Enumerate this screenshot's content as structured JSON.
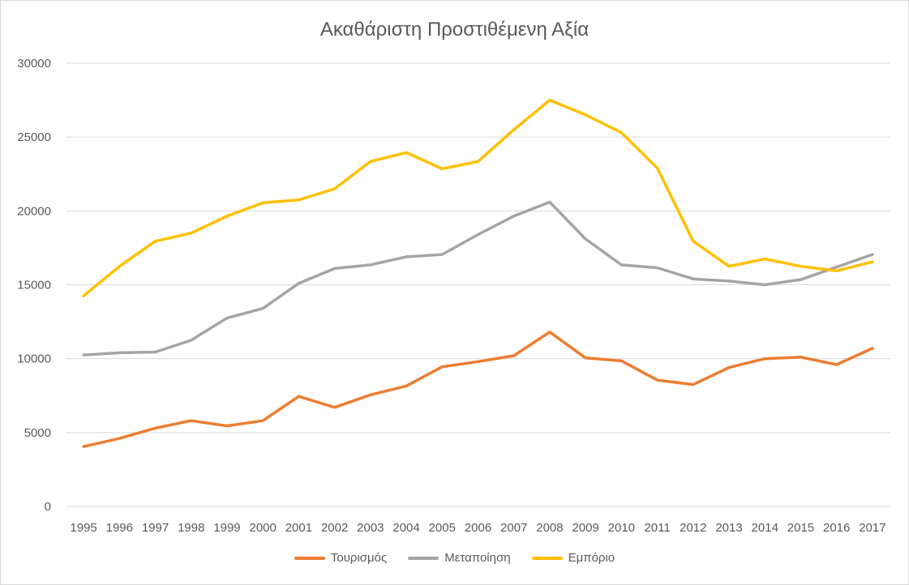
{
  "chart_data": {
    "type": "line",
    "title": "Ακαθάριστη Προστιθέμενη Αξία",
    "xlabel": "",
    "ylabel": "",
    "ylim": [
      0,
      30000
    ],
    "ytick_values": [
      0,
      5000,
      10000,
      15000,
      20000,
      25000,
      30000
    ],
    "grid": true,
    "legend_position": "bottom",
    "x": [
      "1995",
      "1996",
      "1997",
      "1998",
      "1999",
      "2000",
      "2001",
      "2002",
      "2003",
      "2004",
      "2005",
      "2006",
      "2007",
      "2008",
      "2009",
      "2010",
      "2011",
      "2012",
      "2013",
      "2014",
      "2015",
      "2016",
      "2017"
    ],
    "series": [
      {
        "name": "Τουρισμός",
        "color": "#ed7d31",
        "values": [
          4050,
          4600,
          5300,
          5800,
          5450,
          5800,
          7450,
          6700,
          7550,
          8150,
          9450,
          9800,
          10200,
          11800,
          10050,
          9850,
          8550,
          8250,
          9400,
          10000,
          10100,
          9600,
          10700
        ]
      },
      {
        "name": "Μεταποίηση",
        "color": "#a5a5a5",
        "values": [
          10250,
          10400,
          10450,
          11250,
          12750,
          13400,
          15100,
          16100,
          16350,
          16900,
          17050,
          18400,
          19650,
          20600,
          18100,
          16350,
          16150,
          15400,
          15250,
          15000,
          15350,
          16200,
          17050
        ]
      },
      {
        "name": "Εμπόριο",
        "color": "#ffc000",
        "values": [
          14250,
          16250,
          17950,
          18500,
          19650,
          20550,
          20750,
          21500,
          23350,
          23950,
          22850,
          23350,
          25500,
          27500,
          26500,
          25300,
          22900,
          17950,
          16250,
          16750,
          16250,
          15950,
          16550
        ]
      }
    ]
  }
}
